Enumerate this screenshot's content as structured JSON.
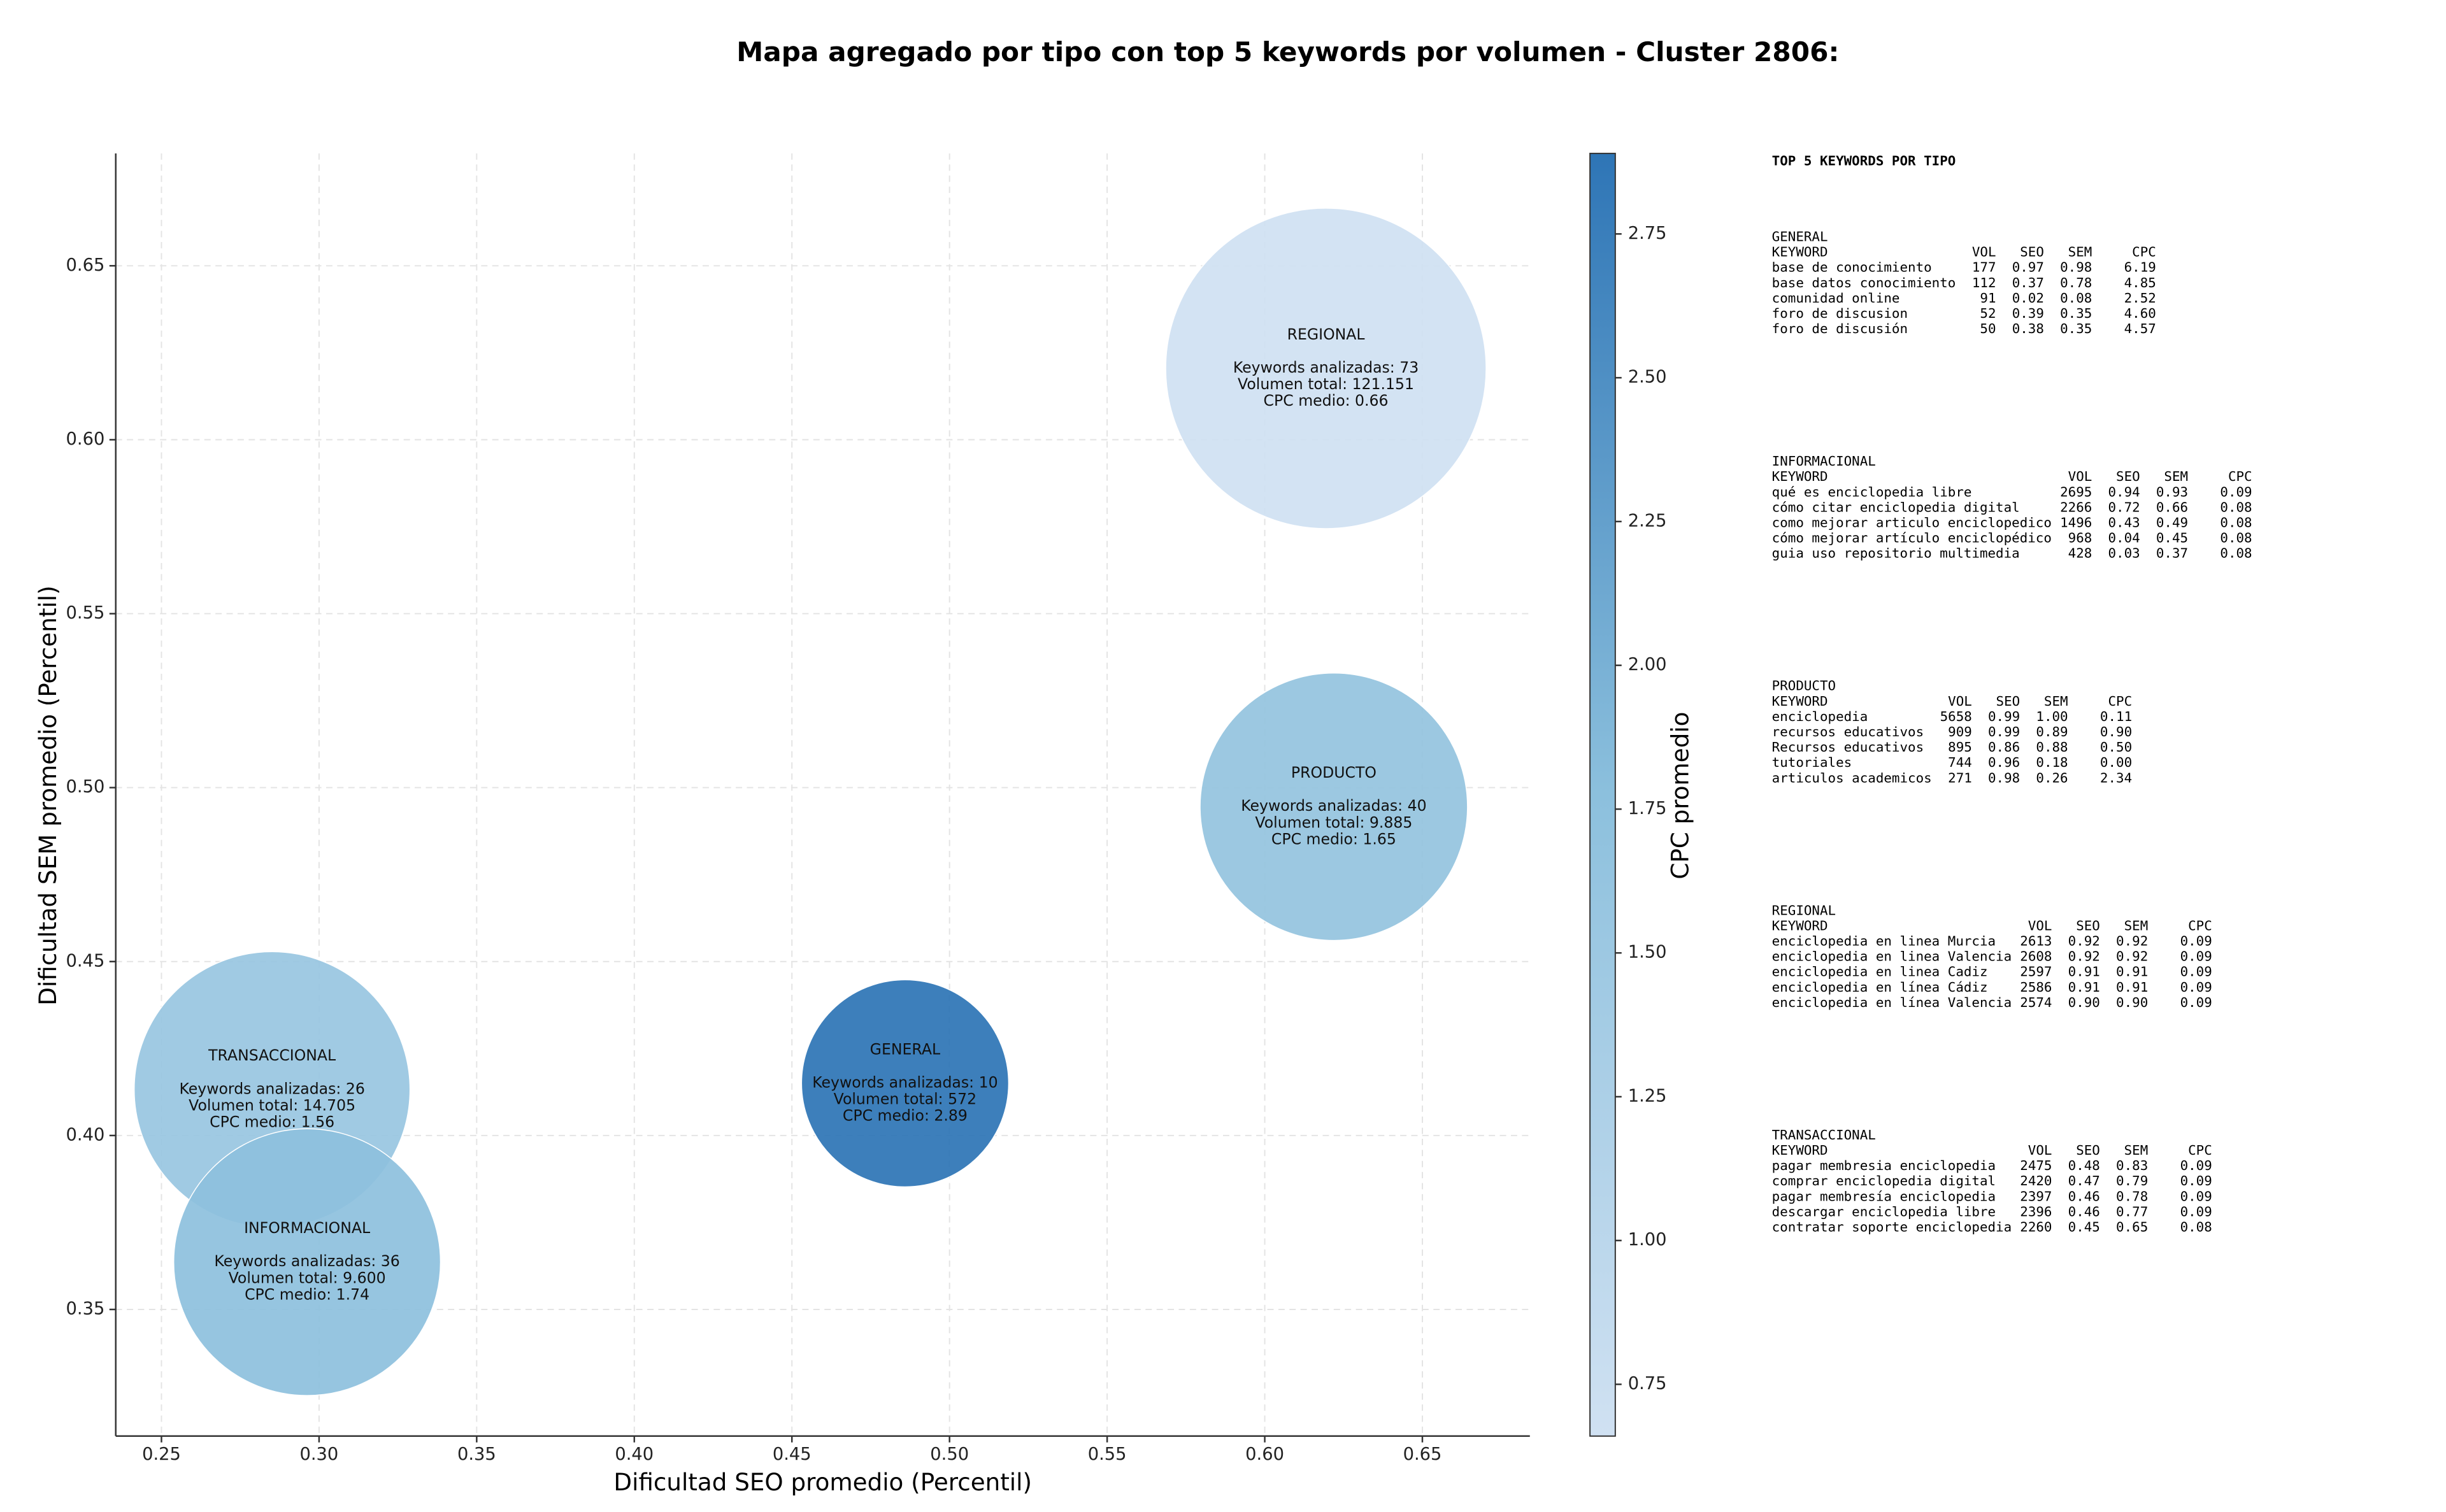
{
  "chart_data": {
    "type": "bubble",
    "title": "Mapa agregado por tipo con top 5 keywords por volumen - Cluster 2806:",
    "xlabel": "Dificultad SEO promedio (Percentil)",
    "ylabel": "Dificultad SEM promedio (Percentil)",
    "colorbar_label": "CPC promedio",
    "xlim": [
      0.2355,
      0.6841
    ],
    "ylim": [
      0.3136,
      0.6823
    ],
    "xticks": [
      0.25,
      {
        "value": 0.3,
        "label": "0.30"
      },
      0.35,
      {
        "value": 0.4,
        "label": "0.40"
      },
      0.45,
      {
        "value": 0.5,
        "label": "0.50"
      },
      0.55,
      {
        "value": 0.6,
        "label": "0.60"
      },
      0.65
    ],
    "yticks": [
      0.35,
      {
        "value": 0.4,
        "label": "0.40"
      },
      0.45,
      {
        "value": 0.5,
        "label": "0.50"
      },
      0.55,
      {
        "value": 0.6,
        "label": "0.60"
      },
      0.65
    ],
    "clim": [
      0.66,
      2.89
    ],
    "cticks": [
      0.75,
      {
        "value": 1.0,
        "label": "1.00"
      },
      1.25,
      {
        "value": 1.5,
        "label": "1.50"
      },
      1.75,
      {
        "value": 2.0,
        "label": "2.00"
      },
      2.25,
      {
        "value": 2.5,
        "label": "2.50"
      },
      2.75
    ],
    "cmap": [
      "#d0e1f2",
      "#8cc0dd",
      "#2e75b6"
    ],
    "grid": true,
    "points": [
      {
        "name": "REGIONAL",
        "x": 0.6194,
        "y": 0.6205,
        "size": 121151,
        "cpc": 0.66,
        "lines": [
          "Keywords analizadas: 73",
          "Volumen total: 121.151",
          "CPC medio: 0.66"
        ]
      },
      {
        "name": "PRODUCTO",
        "x": 0.6219,
        "y": 0.4945,
        "size": 9885,
        "cpc": 1.65,
        "lines": [
          "Keywords analizadas: 40",
          "Volumen total: 9.885",
          "CPC medio: 1.65"
        ]
      },
      {
        "name": "TRANSACCIONAL",
        "x": 0.2851,
        "y": 0.4132,
        "size": 14705,
        "cpc": 1.56,
        "lines": [
          "Keywords analizadas: 26",
          "Volumen total: 14.705",
          "CPC medio: 1.56"
        ]
      },
      {
        "name": "INFORMACIONAL",
        "x": 0.2962,
        "y": 0.3636,
        "size": 9600,
        "cpc": 1.74,
        "lines": [
          "Keywords analizadas: 36",
          "Volumen total: 9.600",
          "CPC medio: 1.74"
        ]
      },
      {
        "name": "GENERAL",
        "x": 0.4859,
        "y": 0.415,
        "size": 572,
        "cpc": 2.89,
        "lines": [
          "Keywords analizadas: 10",
          "Volumen total: 572",
          "CPC medio: 2.89"
        ]
      }
    ]
  },
  "panel": {
    "title": "TOP 5 KEYWORDS POR TIPO",
    "columns": [
      "KEYWORD",
      "VOL",
      "SEO",
      "SEM",
      "CPC"
    ],
    "sections": [
      {
        "name": "GENERAL",
        "rows": [
          [
            "base de conocimiento",
            177,
            "0.97",
            "0.98",
            "6.19"
          ],
          [
            "base datos conocimiento",
            112,
            "0.37",
            "0.78",
            "4.85"
          ],
          [
            "comunidad online",
            91,
            "0.02",
            "0.08",
            "2.52"
          ],
          [
            "foro de discusion",
            52,
            "0.39",
            "0.35",
            "4.60"
          ],
          [
            "foro de discusión",
            50,
            "0.38",
            "0.35",
            "4.57"
          ]
        ]
      },
      {
        "name": "INFORMACIONAL",
        "rows": [
          [
            "qué es enciclopedia libre",
            2695,
            "0.94",
            "0.93",
            "0.09"
          ],
          [
            "cómo citar enciclopedia digital",
            2266,
            "0.72",
            "0.66",
            "0.08"
          ],
          [
            "como mejorar articulo enciclopedico",
            1496,
            "0.43",
            "0.49",
            "0.08"
          ],
          [
            "cómo mejorar artículo enciclopédico",
            968,
            "0.04",
            "0.45",
            "0.08"
          ],
          [
            "guia uso repositorio multimedia",
            428,
            "0.03",
            "0.37",
            "0.08"
          ]
        ]
      },
      {
        "name": "PRODUCTO",
        "rows": [
          [
            "enciclopedia",
            5658,
            "0.99",
            "1.00",
            "0.11"
          ],
          [
            "recursos educativos",
            909,
            "0.99",
            "0.89",
            "0.90"
          ],
          [
            "Recursos educativos",
            895,
            "0.86",
            "0.88",
            "0.50"
          ],
          [
            "tutoriales",
            744,
            "0.96",
            "0.18",
            "0.00"
          ],
          [
            "articulos academicos",
            271,
            "0.98",
            "0.26",
            "2.34"
          ]
        ]
      },
      {
        "name": "REGIONAL",
        "rows": [
          [
            "enciclopedia en linea Murcia",
            2613,
            "0.92",
            "0.92",
            "0.09"
          ],
          [
            "enciclopedia en linea Valencia",
            2608,
            "0.92",
            "0.92",
            "0.09"
          ],
          [
            "enciclopedia en linea Cadiz",
            2597,
            "0.91",
            "0.91",
            "0.09"
          ],
          [
            "enciclopedia en línea Cádiz",
            2586,
            "0.91",
            "0.91",
            "0.09"
          ],
          [
            "enciclopedia en línea Valencia",
            2574,
            "0.90",
            "0.90",
            "0.09"
          ]
        ]
      },
      {
        "name": "TRANSACCIONAL",
        "rows": [
          [
            "pagar membresia enciclopedia",
            2475,
            "0.48",
            "0.83",
            "0.09"
          ],
          [
            "comprar enciclopedia digital",
            2420,
            "0.47",
            "0.79",
            "0.09"
          ],
          [
            "pagar membresía enciclopedia",
            2397,
            "0.46",
            "0.78",
            "0.09"
          ],
          [
            "descargar enciclopedia libre",
            2396,
            "0.46",
            "0.77",
            "0.09"
          ],
          [
            "contratar soporte enciclopedia",
            2260,
            "0.45",
            "0.65",
            "0.08"
          ]
        ]
      }
    ]
  }
}
